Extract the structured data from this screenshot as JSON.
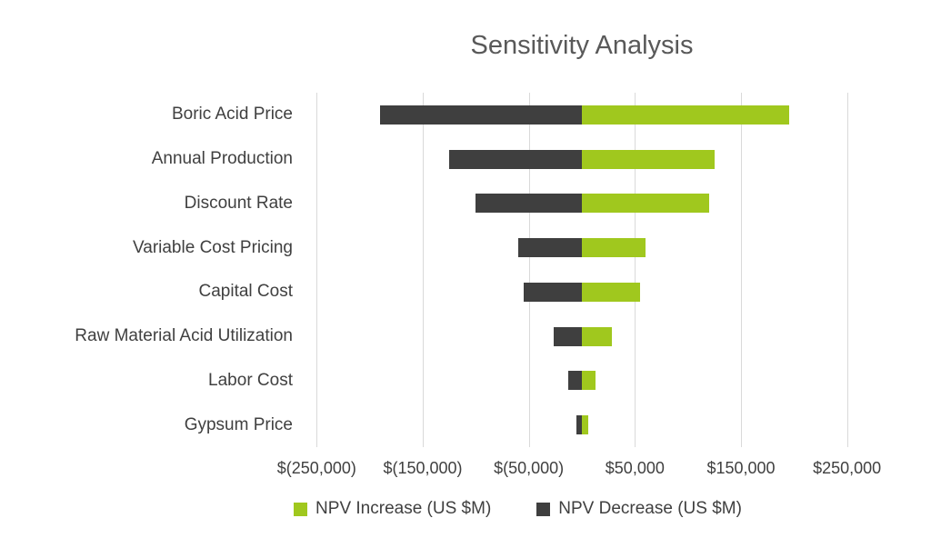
{
  "chart_data": {
    "type": "bar",
    "orientation": "horizontal-tornado",
    "title": "Sensitivity Analysis",
    "categories": [
      "Boric Acid Price",
      "Annual Production",
      "Discount Rate",
      "Variable Cost Pricing",
      "Capital Cost",
      "Raw Material Acid Utilization",
      "Labor Cost",
      "Gypsum Price"
    ],
    "series": [
      {
        "name": "NPV Increase (US $M)",
        "color": "#A0C81E",
        "values": [
          195000,
          125000,
          120000,
          60000,
          55000,
          28000,
          13000,
          6000
        ]
      },
      {
        "name": "NPV Decrease (US $M)",
        "color": "#3F3F3F",
        "values": [
          -190000,
          -125000,
          -100000,
          -60000,
          -55000,
          -27000,
          -13000,
          -5000
        ]
      }
    ],
    "xlim": [
      -300000,
      300000
    ],
    "xticks": [
      -250000,
      -150000,
      -50000,
      50000,
      150000,
      250000
    ],
    "xtick_labels": [
      "$(250,000)",
      "$(150,000)",
      "$(50,000)",
      "$50,000",
      "$150,000",
      "$250,000"
    ],
    "grid": "vertical",
    "legend_position": "bottom"
  },
  "colors": {
    "title_text": "#595959",
    "axis_text": "#404040",
    "gridline": "#D9D9D9",
    "background": "#FFFFFF"
  }
}
